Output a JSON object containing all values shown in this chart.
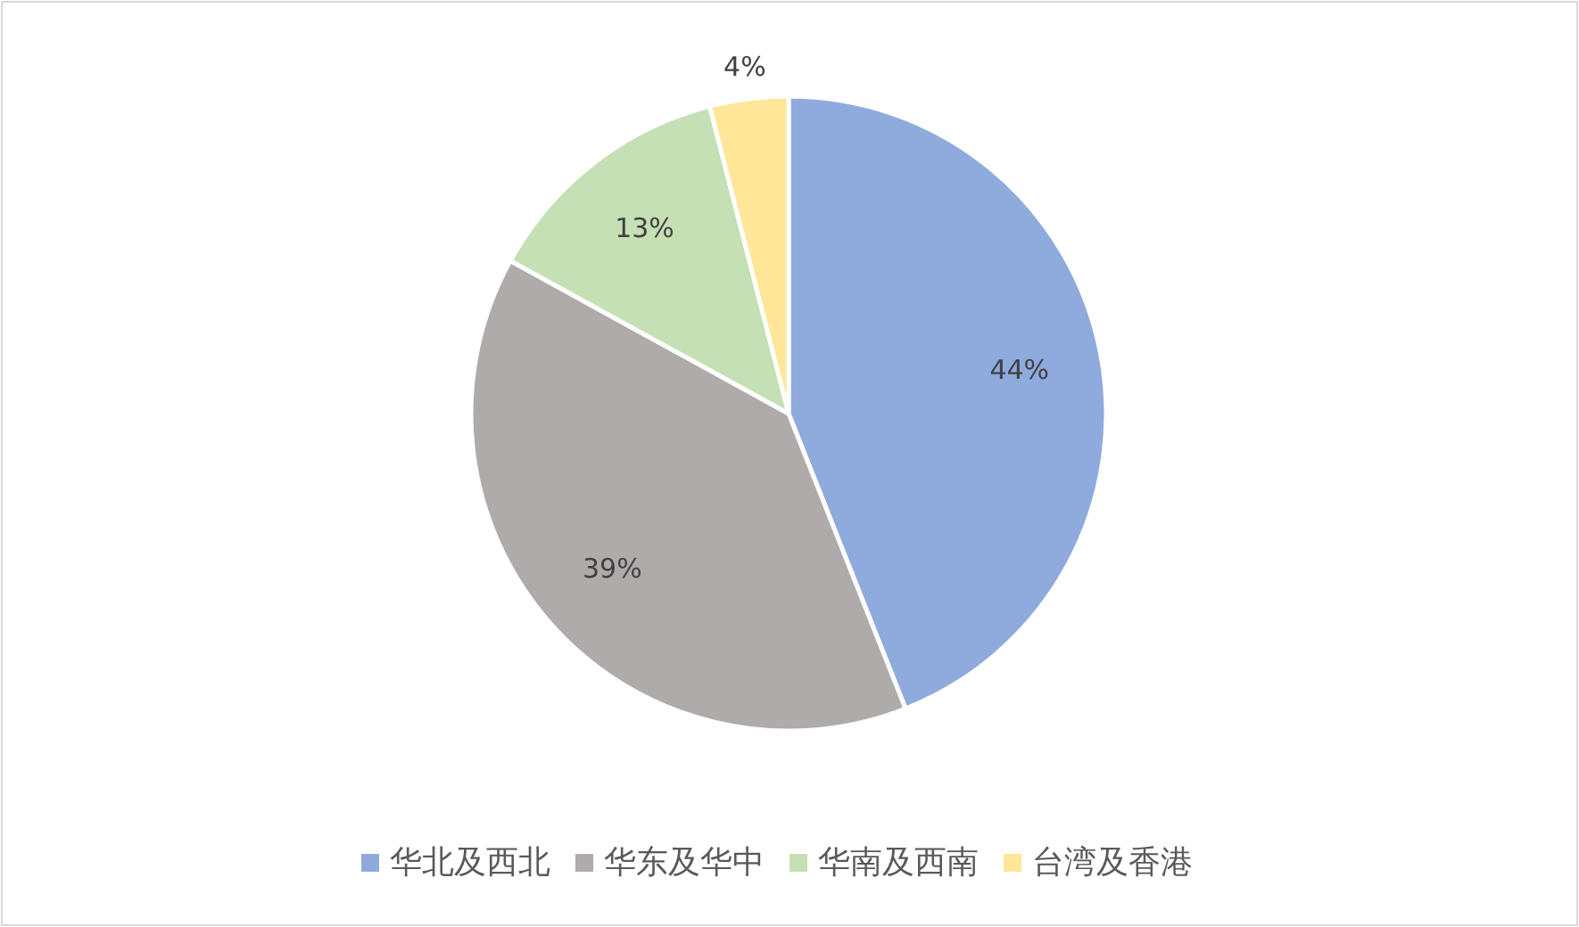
{
  "chart_data": {
    "type": "pie",
    "categories": [
      "华北及西北",
      "华东及华中",
      "华南及西南",
      "台湾及香港"
    ],
    "values": [
      44,
      39,
      13,
      4
    ],
    "colors": [
      "#8faadc",
      "#afabab",
      "#c5e0b4",
      "#ffe699"
    ],
    "value_labels": [
      "44%",
      "39%",
      "13%",
      "4%"
    ],
    "legend": "bottom"
  }
}
